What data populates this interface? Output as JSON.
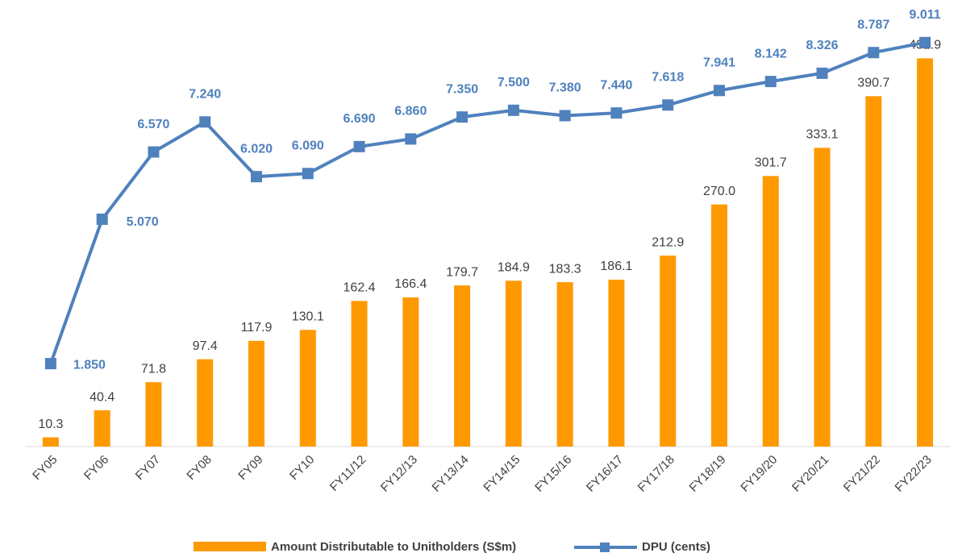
{
  "chart_data": {
    "type": "combo",
    "categories": [
      "FY05",
      "FY06",
      "FY07",
      "FY08",
      "FY09",
      "FY10",
      "FY11/12",
      "FY12/13",
      "FY13/14",
      "FY14/15",
      "FY15/16",
      "FY16/17",
      "FY17/18",
      "FY18/19",
      "FY19/20",
      "FY20/21",
      "FY21/22",
      "FY22/23"
    ],
    "series": [
      {
        "name": "Amount Distributable to Unitholders (S$m)",
        "type": "bar",
        "color": "#ff9900",
        "values": [
          10.3,
          40.4,
          71.8,
          97.4,
          117.9,
          130.1,
          162.4,
          166.4,
          179.7,
          184.9,
          183.3,
          186.1,
          212.9,
          270.0,
          301.7,
          333.1,
          390.7,
          432.9
        ],
        "value_labels": [
          "10.3",
          "40.4",
          "71.8",
          "97.4",
          "117.9",
          "130.1",
          "162.4",
          "166.4",
          "179.7",
          "184.9",
          "183.3",
          "186.1",
          "212.9",
          "270.0",
          "301.7",
          "333.1",
          "390.7",
          "432.9"
        ]
      },
      {
        "name": "DPU (cents)",
        "type": "line",
        "axis": "y2",
        "color": "#4f81bd",
        "values": [
          1.85,
          5.07,
          6.57,
          7.24,
          6.02,
          6.09,
          6.69,
          6.86,
          7.35,
          7.5,
          7.38,
          7.44,
          7.618,
          7.941,
          8.142,
          8.326,
          8.787,
          9.011
        ],
        "value_labels": [
          "1.850",
          "5.070",
          "6.570",
          "7.240",
          "6.020",
          "6.090",
          "6.690",
          "6.860",
          "7.350",
          "7.500",
          "7.380",
          "7.440",
          "7.618",
          "7.941",
          "8.142",
          "8.326",
          "8.787",
          "9.011"
        ]
      }
    ],
    "ylim": [
      0,
      480
    ],
    "y2lim": [
      0,
      9.6
    ],
    "legend": "bottom"
  }
}
